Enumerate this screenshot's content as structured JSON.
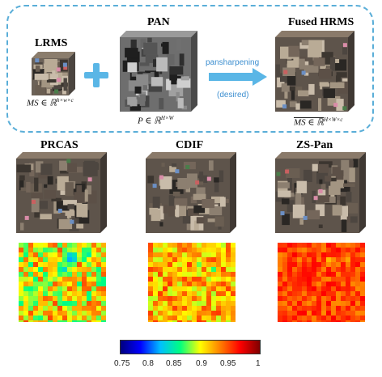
{
  "top_panel": {
    "lrms": {
      "title": "LRMS",
      "formula": "MS ∈ ℝ^{h×w×c}",
      "formula_main": "MS ∈ ℝ",
      "formula_sup": "h×w×c"
    },
    "pan": {
      "title": "PAN",
      "formula": "P ∈ ℝ^{H×W}",
      "formula_main": "P ∈ ℝ",
      "formula_sup": "H×W"
    },
    "fused": {
      "title": "Fused HRMS",
      "formula": "MS^ ∈ ℝ^{H×W×c}",
      "formula_main": "MS ∈ ℝ",
      "formula_sup": "H×W×c"
    },
    "plus_symbol": "+",
    "arrow": {
      "label_top": "pansharpening",
      "label_bottom": "(desired)"
    }
  },
  "methods": [
    {
      "name": "PRCAS"
    },
    {
      "name": "CDIF"
    },
    {
      "name": "ZS-Pan"
    }
  ],
  "colorbar": {
    "ticks": [
      "0.75",
      "0.8",
      "0.85",
      "0.9",
      "0.95",
      "1"
    ],
    "colors": [
      "#00007f",
      "#0000ff",
      "#00bfff",
      "#00ff80",
      "#ffff00",
      "#ff8000",
      "#ff0000",
      "#7f0000"
    ]
  },
  "colors": {
    "dashed_border": "#5aaed8",
    "arrow": "#5ab6e6",
    "plus": "#5ab6e6"
  }
}
